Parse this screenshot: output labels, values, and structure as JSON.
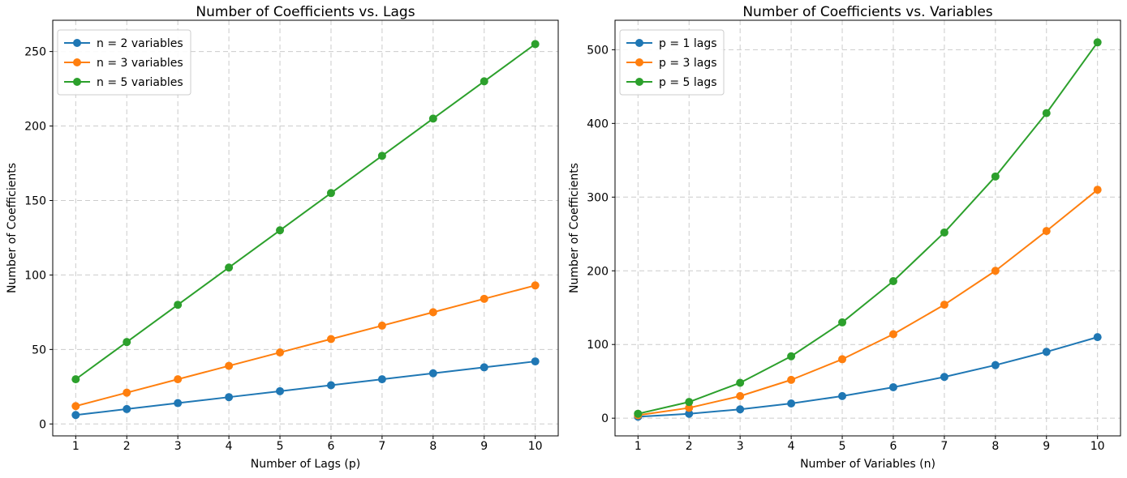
{
  "figure": {
    "background": "#ffffff"
  },
  "colors": {
    "grid": "#cccccc",
    "axis": "#000000",
    "text": "#000000",
    "legend_border": "#cccccc",
    "legend_bg": "#ffffff",
    "series_blue": "#1f77b4",
    "series_orange": "#ff7f0e",
    "series_green": "#2ca02c"
  },
  "chart_data": [
    {
      "type": "line",
      "title": "Number of Coefficients vs. Lags",
      "xlabel": "Number of Lags (p)",
      "ylabel": "Number of Coefficients",
      "x": [
        1,
        2,
        3,
        4,
        5,
        6,
        7,
        8,
        9,
        10
      ],
      "xticks": [
        1,
        2,
        3,
        4,
        5,
        6,
        7,
        8,
        9,
        10
      ],
      "yticks": [
        0,
        50,
        100,
        150,
        200,
        250
      ],
      "xlim": [
        0.55,
        10.45
      ],
      "ylim": [
        -8,
        271
      ],
      "grid": true,
      "legend_position": "upper-left",
      "marker": "circle",
      "series": [
        {
          "name": "n = 2 variables",
          "color": "#1f77b4",
          "values": [
            6,
            10,
            14,
            18,
            22,
            26,
            30,
            34,
            38,
            42
          ]
        },
        {
          "name": "n = 3 variables",
          "color": "#ff7f0e",
          "values": [
            12,
            21,
            30,
            39,
            48,
            57,
            66,
            75,
            84,
            93
          ]
        },
        {
          "name": "n = 5 variables",
          "color": "#2ca02c",
          "values": [
            30,
            55,
            80,
            105,
            130,
            155,
            180,
            205,
            230,
            255
          ]
        }
      ]
    },
    {
      "type": "line",
      "title": "Number of Coefficients vs. Variables",
      "xlabel": "Number of Variables (n)",
      "ylabel": "Number of Coefficients",
      "x": [
        1,
        2,
        3,
        4,
        5,
        6,
        7,
        8,
        9,
        10
      ],
      "xticks": [
        1,
        2,
        3,
        4,
        5,
        6,
        7,
        8,
        9,
        10
      ],
      "yticks": [
        0,
        100,
        200,
        300,
        400,
        500
      ],
      "xlim": [
        0.55,
        10.45
      ],
      "ylim": [
        -24,
        540
      ],
      "grid": true,
      "legend_position": "upper-left",
      "marker": "circle",
      "series": [
        {
          "name": "p = 1 lags",
          "color": "#1f77b4",
          "values": [
            2,
            6,
            12,
            20,
            30,
            42,
            56,
            72,
            90,
            110
          ]
        },
        {
          "name": "p = 3 lags",
          "color": "#ff7f0e",
          "values": [
            4,
            14,
            30,
            52,
            80,
            114,
            154,
            200,
            254,
            310
          ]
        },
        {
          "name": "p = 5 lags",
          "color": "#2ca02c",
          "values": [
            6,
            22,
            48,
            84,
            130,
            186,
            252,
            328,
            414,
            510
          ]
        }
      ]
    }
  ]
}
